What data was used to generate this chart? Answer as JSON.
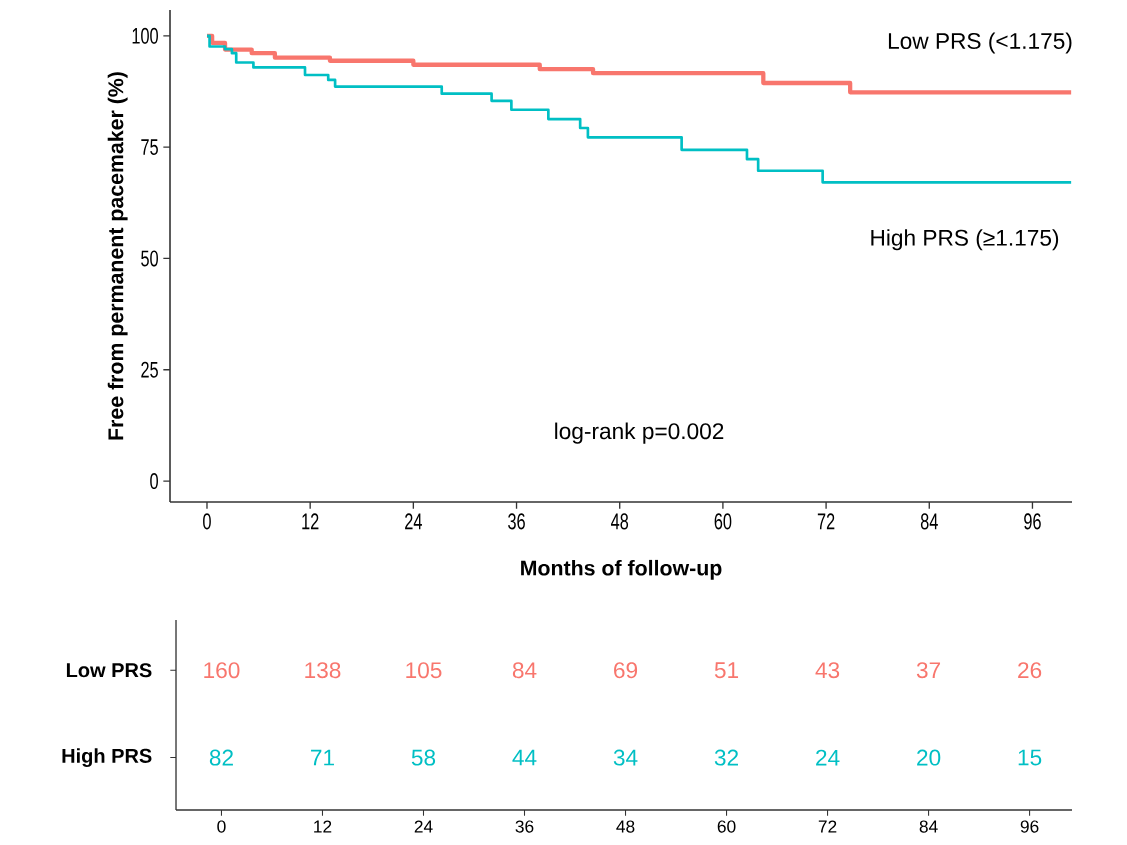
{
  "chart_data": [
    {
      "type": "step",
      "ylabel": "Free from permanent pacemaker (%)",
      "xlabel": "Months of follow-up",
      "xlim": [
        -4.3,
        100.6
      ],
      "ylim": [
        -4.7,
        105.8
      ],
      "xticks": [
        0,
        12,
        24,
        36,
        48,
        60,
        72,
        84,
        96
      ],
      "yticks": [
        0,
        25,
        50,
        75,
        100
      ],
      "grid": false,
      "legend": false,
      "marker": "none",
      "line_style": "solid",
      "annotations": [
        "log-rank p=0.002"
      ],
      "series": [
        {
          "name": "Low PRS (<1.175)",
          "color": "#f8766d",
          "x": [
            0,
            0.6,
            2.1,
            5.2,
            7.9,
            14.3,
            24.0,
            38.7,
            44.9,
            64.7,
            74.8,
            100.5
          ],
          "values": [
            100,
            98.4,
            96.9,
            96.1,
            95.1,
            94.4,
            93.5,
            92.5,
            91.6,
            89.4,
            87.3,
            87.3
          ]
        },
        {
          "name": "High PRS (≥1.175)",
          "color": "#00bfc4",
          "x": [
            0,
            0.3,
            2.1,
            2.9,
            3.4,
            5.4,
            11.4,
            14.1,
            14.9,
            27.3,
            33.1,
            35.4,
            39.7,
            43.4,
            44.3,
            55.2,
            62.8,
            64.1,
            71.6,
            100.5
          ],
          "values": [
            100,
            97.6,
            97.0,
            96.1,
            94.0,
            92.9,
            91.2,
            90.1,
            88.6,
            87.0,
            85.4,
            83.4,
            81.3,
            79.3,
            77.2,
            74.4,
            72.3,
            69.7,
            67.1,
            67.1
          ]
        }
      ]
    },
    {
      "type": "heatmap",
      "categories": [
        "0",
        "12",
        "24",
        "36",
        "48",
        "60",
        "72",
        "84",
        "96"
      ],
      "y_categories": [
        "Low PRS",
        "High PRS"
      ],
      "colors": [
        "#f8766d",
        "#00bfc4"
      ],
      "data_labels": true,
      "cells": [
        [
          160,
          138,
          105,
          84,
          69,
          51,
          43,
          37,
          26
        ],
        [
          82,
          71,
          58,
          44,
          34,
          32,
          24,
          20,
          15
        ]
      ]
    }
  ]
}
